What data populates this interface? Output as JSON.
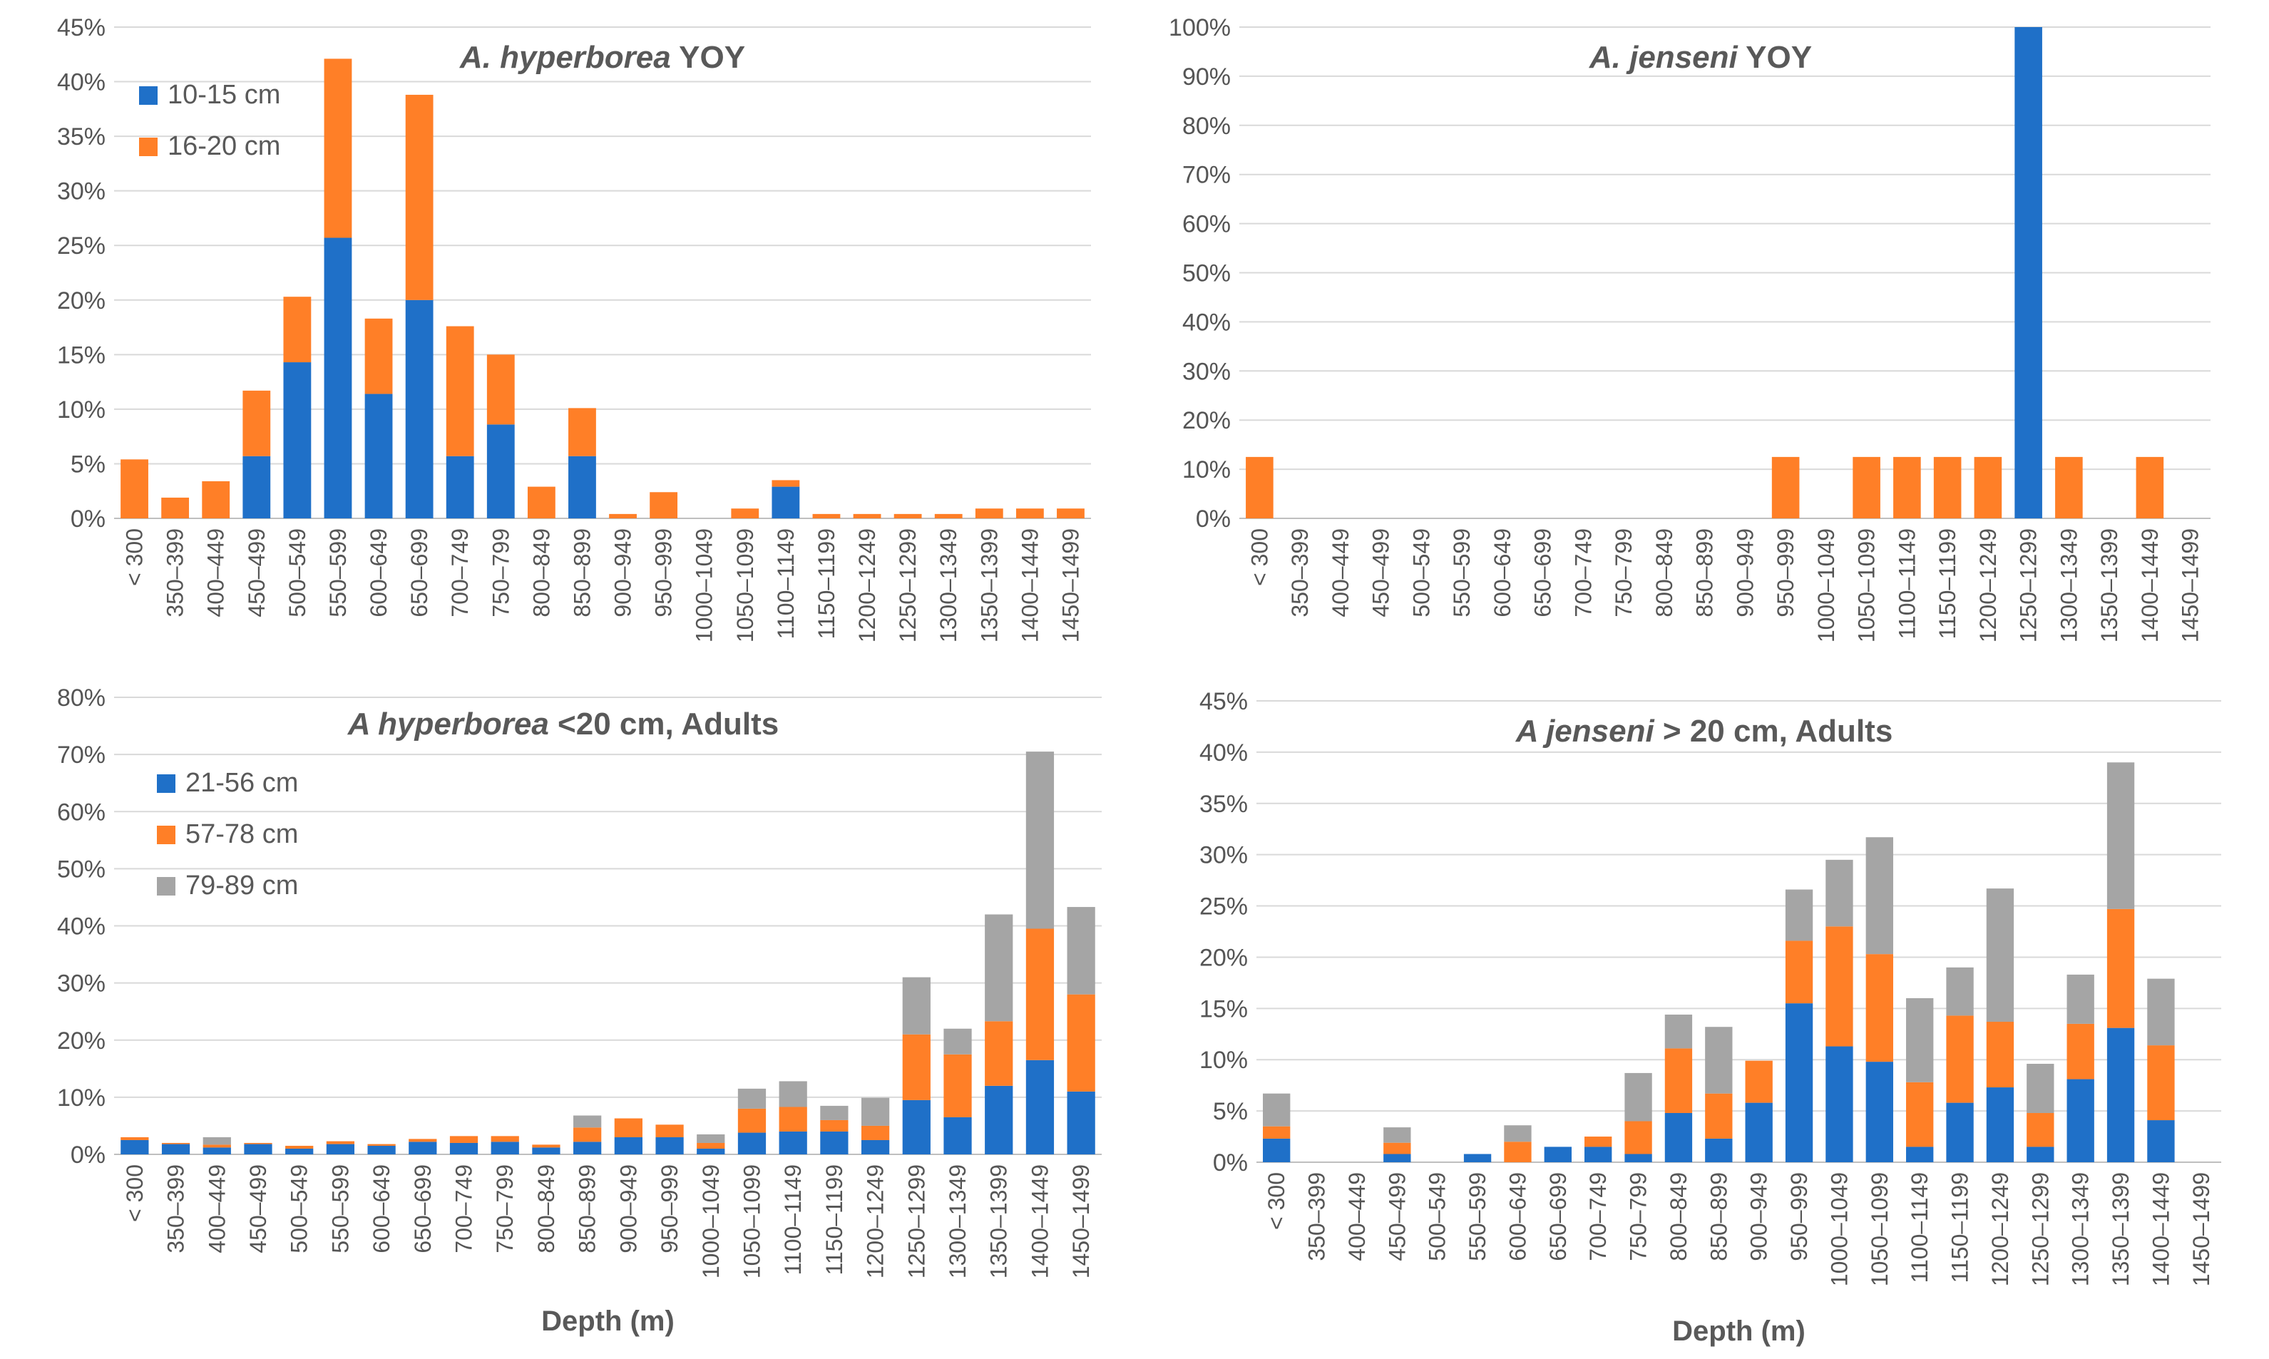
{
  "colors": {
    "blue": "#1f70c8",
    "orange": "#ff7f27",
    "gray": "#a5a5a5"
  },
  "chart_data": [
    {
      "type": "bar",
      "stacked": true,
      "title_italic": "A. hyperborea",
      "title_rest": " YOY",
      "xlabel": "",
      "ylabel": "",
      "ylim": [
        0,
        45
      ],
      "y_ticks": [
        "0%",
        "5%",
        "10%",
        "15%",
        "20%",
        "25%",
        "30%",
        "35%",
        "40%",
        "45%"
      ],
      "legend_position": "top-left",
      "categories": [
        "< 300",
        "350–399",
        "400–449",
        "450–499",
        "500–549",
        "550–599",
        "600–649",
        "650–699",
        "700–749",
        "750–799",
        "800–849",
        "850–899",
        "900–949",
        "950–999",
        "1000–1049",
        "1050–1099",
        "1100–1149",
        "1150–1199",
        "1200–1249",
        "1250–1299",
        "1300–1349",
        "1350–1399",
        "1400–1449",
        "1450–1499"
      ],
      "series": [
        {
          "name": "10-15 cm",
          "color": "blue",
          "values": [
            0,
            0,
            0,
            5.7,
            14.3,
            25.7,
            11.4,
            20.0,
            5.7,
            8.6,
            0,
            5.7,
            0,
            0,
            0,
            0,
            2.9,
            0,
            0,
            0,
            0,
            0,
            0,
            0
          ]
        },
        {
          "name": "16-20 cm",
          "color": "orange",
          "values": [
            5.4,
            1.9,
            3.4,
            6.0,
            6.0,
            16.4,
            6.9,
            18.8,
            11.9,
            6.4,
            2.9,
            4.4,
            0.4,
            2.4,
            0,
            0.9,
            0.6,
            0.4,
            0.4,
            0.4,
            0.4,
            0.9,
            0.9,
            0.9
          ]
        }
      ]
    },
    {
      "type": "bar",
      "stacked": true,
      "title_italic": "A. jenseni",
      "title_rest": " YOY",
      "xlabel": "",
      "ylabel": "",
      "ylim": [
        0,
        100
      ],
      "y_ticks": [
        "0%",
        "10%",
        "20%",
        "30%",
        "40%",
        "50%",
        "60%",
        "70%",
        "80%",
        "90%",
        "100%"
      ],
      "legend_position": "none",
      "categories": [
        "< 300",
        "350–399",
        "400–449",
        "450–499",
        "500–549",
        "550–599",
        "600–649",
        "650–699",
        "700–749",
        "750–799",
        "800–849",
        "850–899",
        "900–949",
        "950–999",
        "1000–1049",
        "1050–1099",
        "1100–1149",
        "1150–1199",
        "1200–1249",
        "1250–1299",
        "1300–1349",
        "1350–1399",
        "1400–1449",
        "1450–1499"
      ],
      "series": [
        {
          "name": "10-15 cm",
          "color": "blue",
          "values": [
            0,
            0,
            0,
            0,
            0,
            0,
            0,
            0,
            0,
            0,
            0,
            0,
            0,
            0,
            0,
            0,
            0,
            0,
            0,
            100,
            0,
            0,
            0,
            0
          ]
        },
        {
          "name": "16-20 cm",
          "color": "orange",
          "values": [
            12.5,
            0,
            0,
            0,
            0,
            0,
            0,
            0,
            0,
            0,
            0,
            0,
            0,
            12.5,
            0,
            12.5,
            12.5,
            12.5,
            12.5,
            0,
            12.5,
            0,
            12.5,
            0
          ]
        }
      ]
    },
    {
      "type": "bar",
      "stacked": true,
      "title_italic": "A hyperborea",
      "title_rest": " <20 cm, Adults",
      "xlabel": "Depth (m)",
      "ylabel": "",
      "ylim": [
        0,
        80
      ],
      "y_ticks": [
        "0%",
        "10%",
        "20%",
        "30%",
        "40%",
        "50%",
        "60%",
        "70%",
        "80%"
      ],
      "legend_position": "top-left",
      "categories": [
        "< 300",
        "350–399",
        "400–449",
        "450–499",
        "500–549",
        "550–599",
        "600–649",
        "650–699",
        "700–749",
        "750–799",
        "800–849",
        "850–899",
        "900–949",
        "950–999",
        "1000–1049",
        "1050–1099",
        "1100–1149",
        "1150–1199",
        "1200–1249",
        "1250–1299",
        "1300–1349",
        "1350–1399",
        "1400–1449",
        "1450–1499"
      ],
      "series": [
        {
          "name": "21-56 cm",
          "color": "blue",
          "values": [
            2.5,
            1.8,
            1.2,
            1.8,
            1.0,
            1.8,
            1.5,
            2.2,
            2.0,
            2.2,
            1.2,
            2.2,
            3.0,
            3.0,
            1.0,
            3.8,
            4.0,
            4.0,
            2.5,
            9.5,
            6.5,
            12.0,
            16.5,
            11.0
          ]
        },
        {
          "name": "57-78 cm",
          "color": "orange",
          "values": [
            0.5,
            0.2,
            0.5,
            0.2,
            0.5,
            0.5,
            0.3,
            0.5,
            1.2,
            1.0,
            0.5,
            2.5,
            3.3,
            2.2,
            1.0,
            4.2,
            4.3,
            2.0,
            2.5,
            11.5,
            11.0,
            11.3,
            23.0,
            17.0
          ]
        },
        {
          "name": "79-89 cm",
          "color": "gray",
          "values": [
            0,
            0,
            1.3,
            0,
            0,
            0,
            0,
            0,
            0,
            0,
            0,
            2.1,
            0,
            0,
            1.5,
            3.5,
            4.5,
            2.5,
            4.9,
            10.0,
            4.5,
            18.7,
            31.0,
            15.3
          ]
        }
      ]
    },
    {
      "type": "bar",
      "stacked": true,
      "title_italic": "A jenseni",
      "title_rest": " > 20 cm, Adults",
      "xlabel": "Depth (m)",
      "ylabel": "",
      "ylim": [
        0,
        45
      ],
      "y_ticks": [
        "0%",
        "5%",
        "10%",
        "15%",
        "20%",
        "25%",
        "30%",
        "35%",
        "40%",
        "45%"
      ],
      "legend_position": "none",
      "categories": [
        "< 300",
        "350–399",
        "400–449",
        "450–499",
        "500–549",
        "550–599",
        "600–649",
        "650–699",
        "700–749",
        "750–799",
        "800–849",
        "850–899",
        "900–949",
        "950–999",
        "1000–1049",
        "1050–1099",
        "1100–1149",
        "1150–1199",
        "1200–1249",
        "1250–1299",
        "1300–1349",
        "1350–1399",
        "1400–1449",
        "1450–1499"
      ],
      "series": [
        {
          "name": "21-56 cm",
          "color": "blue",
          "values": [
            2.3,
            0,
            0,
            0.8,
            0,
            0.8,
            0,
            1.5,
            1.5,
            0.8,
            4.8,
            2.3,
            5.8,
            15.5,
            11.3,
            9.8,
            1.5,
            5.8,
            7.3,
            1.5,
            8.1,
            13.1,
            4.1,
            0
          ]
        },
        {
          "name": "57-78 cm",
          "color": "orange",
          "values": [
            1.2,
            0,
            0,
            1.1,
            0,
            0,
            2.0,
            0,
            1.0,
            3.2,
            6.3,
            4.4,
            4.1,
            6.1,
            11.7,
            10.5,
            6.3,
            8.5,
            6.4,
            3.3,
            5.4,
            11.6,
            7.3,
            0
          ]
        },
        {
          "name": "79-89 cm",
          "color": "gray",
          "values": [
            3.2,
            0,
            0,
            1.5,
            0,
            0,
            1.6,
            0,
            0,
            4.7,
            3.3,
            6.5,
            0,
            5.0,
            6.5,
            11.4,
            8.2,
            4.7,
            13.0,
            4.8,
            4.8,
            14.3,
            6.5,
            0
          ]
        }
      ]
    }
  ]
}
